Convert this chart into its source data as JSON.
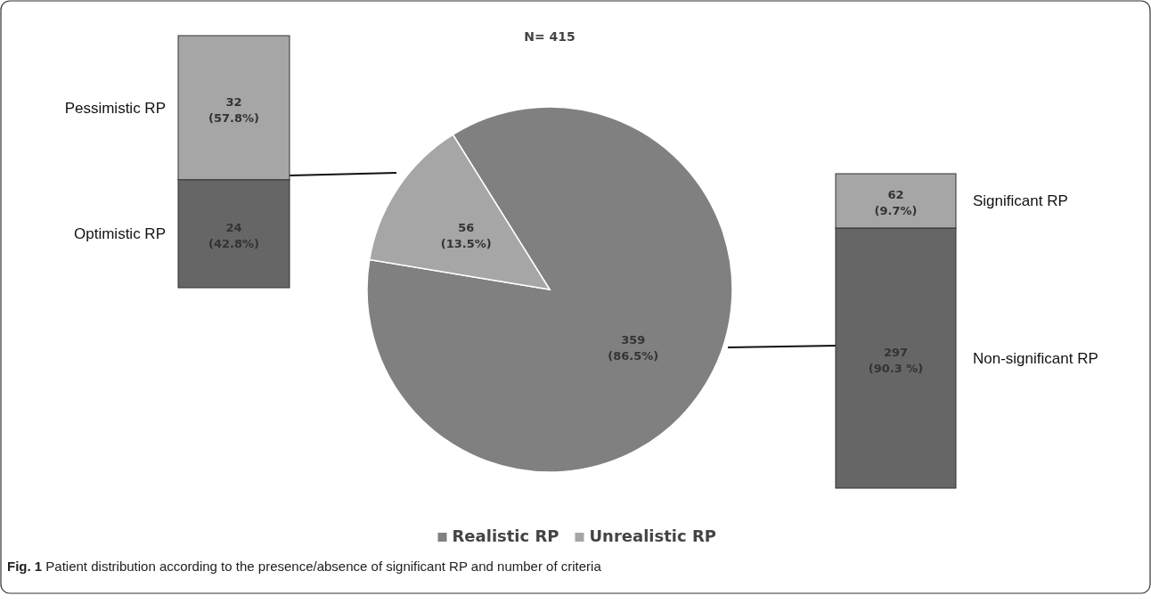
{
  "chart_data": [
    {
      "type": "pie",
      "title": "N= 415",
      "categories": [
        "Realistic RP",
        "Unrealistic RP"
      ],
      "values": [
        359,
        56
      ],
      "colors": [
        "#808080",
        "#a6a6a6"
      ],
      "value_labels": [
        "359 (86.5%)",
        "56 (13.5%)"
      ],
      "legend": "bottom",
      "annotations": [
        "Fig. 1 Patient distribution according to the presence/absence of significant RP and number of criteria"
      ]
    },
    {
      "type": "bar",
      "stacked": true,
      "categories": [
        null
      ],
      "series": [
        {
          "name": "Optimistic RP",
          "color": "#666666",
          "values": [
            24
          ],
          "value_labels": [
            "24 (42.8%)"
          ]
        },
        {
          "name": "Pessimistic RP",
          "color": "#a6a6a6",
          "values": [
            32
          ],
          "value_labels": [
            "32 (57.8%)"
          ]
        }
      ]
    },
    {
      "type": "bar",
      "stacked": true,
      "categories": [
        null
      ],
      "series": [
        {
          "name": "Non-significant RP",
          "color": "#666666",
          "values": [
            297
          ],
          "value_labels": [
            "297 (90.3 %)"
          ]
        },
        {
          "name": "Significant RP",
          "color": "#a6a6a6",
          "values": [
            62
          ],
          "value_labels": [
            "62 (9.7%)"
          ]
        }
      ]
    }
  ]
}
